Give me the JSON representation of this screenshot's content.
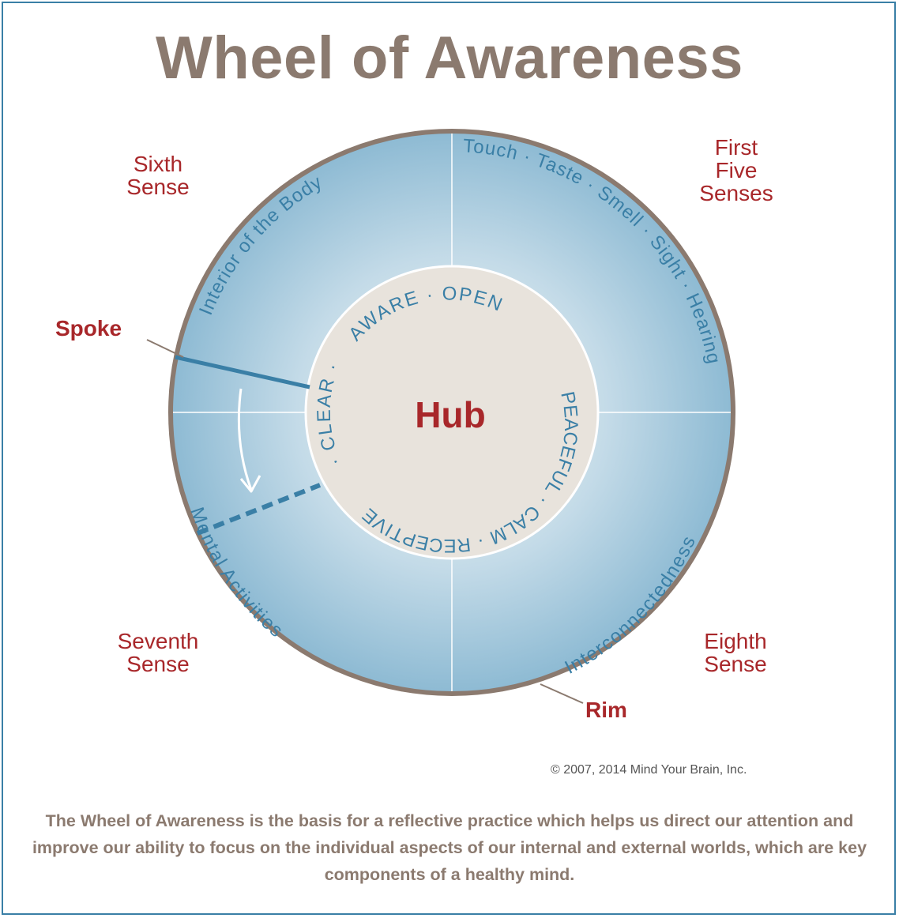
{
  "title": "Wheel of Awareness",
  "hub": {
    "label": "Hub",
    "qualities": [
      "AWARE",
      "OPEN",
      "PEACEFUL",
      "CALM",
      "RECEPTIVE",
      "CLEAR"
    ]
  },
  "rim_segments": {
    "first_five": "Touch · Taste · Smell · Sight · Hearing",
    "sixth": "Interior of the Body",
    "seventh": "Mental Activities",
    "eighth": "Interconnectedness"
  },
  "senses": {
    "sixth": [
      "Sixth",
      "Sense"
    ],
    "first": [
      "First",
      "Five",
      "Senses"
    ],
    "seventh": [
      "Seventh",
      "Sense"
    ],
    "eighth": [
      "Eighth",
      "Sense"
    ]
  },
  "callouts": {
    "spoke": "Spoke",
    "rim": "Rim"
  },
  "copyright": "© 2007, 2014 Mind Your Brain, Inc.",
  "description": "The Wheel of Awareness is the basis for a reflective practice which helps us direct our attention and improve our ability to focus on the individual aspects of our internal and external worlds, which are key components of a healthy mind.",
  "colors": {
    "title": "#8b7a6f",
    "accent_red": "#a8272a",
    "wheel_blue": "#3a7fa6",
    "rim_border": "#8b7a6f",
    "hub_fill": "#e8e3dc"
  }
}
